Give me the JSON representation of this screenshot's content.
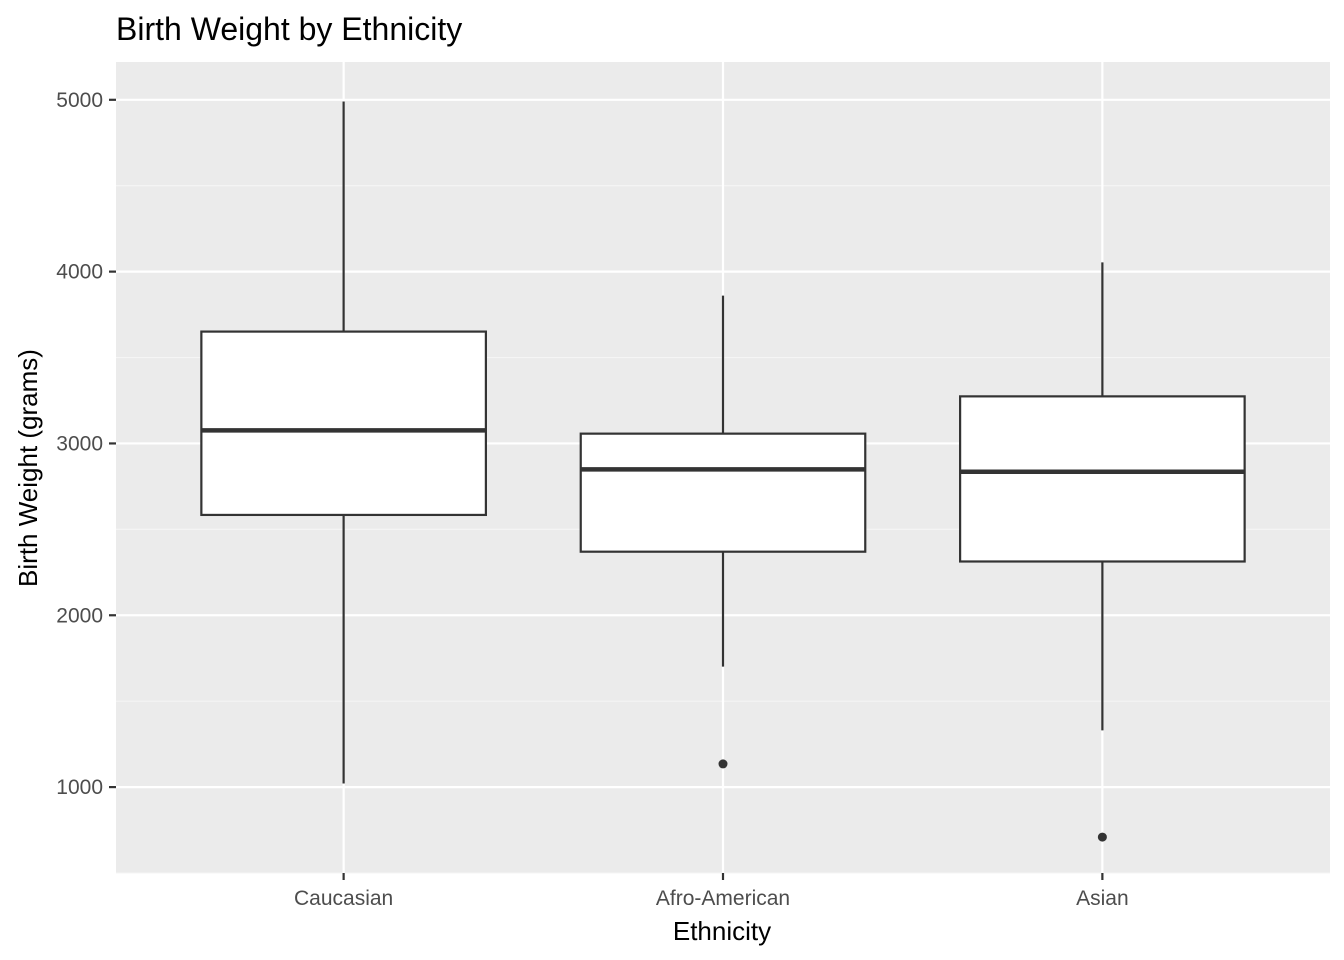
{
  "chart_data": {
    "type": "boxplot",
    "title": "Birth Weight by Ethnicity",
    "xlabel": "Ethnicity",
    "ylabel": "Birth Weight (grams)",
    "categories": [
      "Caucasian",
      "Afro-American",
      "Asian"
    ],
    "ylim": [
      500,
      5220
    ],
    "yticks": [
      1000,
      2000,
      3000,
      4000,
      5000
    ],
    "ytick_labels": [
      "1000",
      "2000",
      "3000",
      "4000",
      "5000"
    ],
    "grid": true,
    "legend": "none",
    "boxes": [
      {
        "category": "Caucasian",
        "whisker_low": 1021,
        "q1": 2584,
        "median": 3076,
        "q3": 3651,
        "whisker_high": 4990,
        "outliers": []
      },
      {
        "category": "Afro-American",
        "whisker_low": 1701,
        "q1": 2370,
        "median": 2849,
        "q3": 3057,
        "whisker_high": 3860,
        "outliers": [
          1135
        ]
      },
      {
        "category": "Asian",
        "whisker_low": 1330,
        "q1": 2313,
        "median": 2835,
        "q3": 3274,
        "whisker_high": 4054,
        "outliers": [
          709
        ]
      }
    ],
    "colors": {
      "panel_background": "#ebebeb",
      "grid_major": "#ffffff",
      "grid_minor": "#f5f5f5",
      "box_fill": "#ffffff",
      "box_line": "#333333",
      "tick_text": "#4d4d4d",
      "tick_mark": "#333333"
    }
  }
}
